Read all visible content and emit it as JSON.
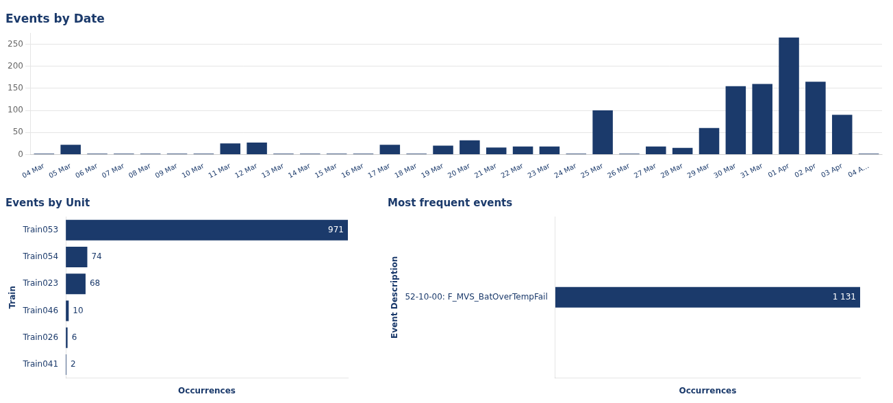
{
  "chart_data": [
    {
      "type": "bar",
      "title": "Events by Date",
      "categories": [
        "04 Mar",
        "05 Mar",
        "06 Mar",
        "07 Mar",
        "08 Mar",
        "09 Mar",
        "10 Mar",
        "11 Mar",
        "12 Mar",
        "13 Mar",
        "14 Mar",
        "15 Mar",
        "16 Mar",
        "17 Mar",
        "18 Mar",
        "19 Mar",
        "20 Mar",
        "21 Mar",
        "22 Mar",
        "23 Mar",
        "24 Mar",
        "25 Mar",
        "26 Mar",
        "27 Mar",
        "28 Mar",
        "29 Mar",
        "30 Mar",
        "31 Mar",
        "01 Apr",
        "02 Apr",
        "03 Apr",
        "04 A…"
      ],
      "values": [
        2,
        22,
        2,
        2,
        2,
        2,
        2,
        25,
        27,
        2,
        2,
        2,
        2,
        22,
        2,
        20,
        32,
        16,
        18,
        18,
        2,
        100,
        2,
        18,
        15,
        60,
        155,
        160,
        265,
        165,
        90,
        2
      ],
      "color": "#1b3a6b",
      "ylim": [
        0,
        275
      ],
      "yticks": [
        0,
        50,
        100,
        150,
        200,
        250
      ],
      "grid": true
    },
    {
      "type": "bar",
      "title": "Events by Unit",
      "orientation": "horizontal",
      "categories": [
        "Train053",
        "Train054",
        "Train023",
        "Train046",
        "Train026",
        "Train041"
      ],
      "values": [
        971,
        74,
        68,
        10,
        6,
        2
      ],
      "color": "#1b3a6b",
      "y_label": "Train",
      "x_label": "Occurrences",
      "xlim": [
        0,
        971
      ],
      "grid": false,
      "data_labels": true,
      "tick_labels": "y"
    },
    {
      "type": "bar",
      "title": "Most frequent events",
      "orientation": "horizontal",
      "categories": [
        "52-10-00: F_MVS_BatOverTempFail"
      ],
      "values": [
        1131
      ],
      "value_labels": [
        "1 131"
      ],
      "color": "#1b3a6b",
      "y_label": "Event Description",
      "x_label": "Occurrences",
      "xlim": [
        0,
        1131
      ],
      "grid": false,
      "data_labels": true,
      "tick_labels": "y"
    }
  ]
}
